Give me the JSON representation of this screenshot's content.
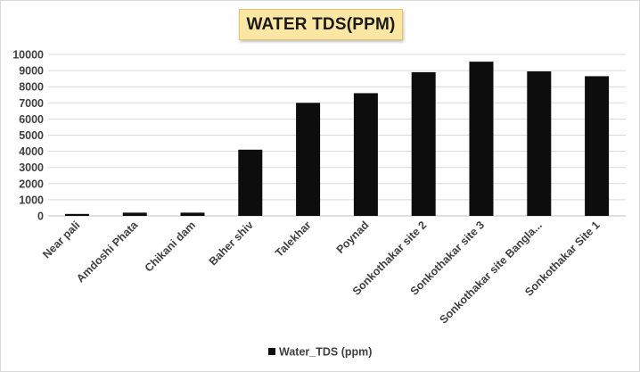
{
  "chart_data": {
    "type": "bar",
    "title": "WATER TDS(PPM)",
    "xlabel": "",
    "ylabel": "",
    "ylim": [
      0,
      10000
    ],
    "yticks": [
      0,
      1000,
      2000,
      3000,
      4000,
      5000,
      6000,
      7000,
      8000,
      9000,
      10000
    ],
    "grid": true,
    "legend_position": "bottom",
    "categories": [
      "Near pali",
      "Amdoshi Phata",
      "Chikani dam",
      "Baher shiv",
      "Talekhar",
      "Poynad",
      "Sonkothakar site 2",
      "Sonkothakar site 3",
      "Sonkothakar site Bangla...",
      "Sonkothakar Site 1"
    ],
    "series": [
      {
        "name": "Water_TDS (ppm)",
        "color": "#0d0d0d",
        "values": [
          120,
          200,
          200,
          4100,
          7000,
          7600,
          8900,
          9550,
          8950,
          8650
        ]
      }
    ]
  }
}
